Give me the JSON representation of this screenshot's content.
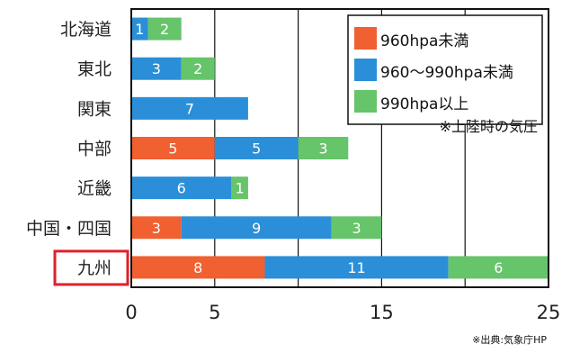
{
  "chart_data": {
    "type": "bar",
    "stacked": true,
    "orientation": "horizontal",
    "categories": [
      "北海道",
      "東北",
      "関東",
      "中部",
      "近畿",
      "中国・四国",
      "九州"
    ],
    "highlighted_category": "九州",
    "series": [
      {
        "name": "960hpa未満",
        "color": "#f06030",
        "values": [
          0,
          0,
          0,
          5,
          0,
          3,
          8
        ]
      },
      {
        "name": "960〜990hpa未満",
        "color": "#2a8fd8",
        "values": [
          1,
          3,
          7,
          5,
          6,
          9,
          11
        ]
      },
      {
        "name": "990hpa以上",
        "color": "#66c46a",
        "values": [
          2,
          2,
          0,
          3,
          1,
          3,
          6
        ]
      }
    ],
    "xlim": [
      0,
      25
    ],
    "xticks": [
      0,
      5,
      15,
      25
    ],
    "gridlines": [
      5,
      10,
      15,
      20
    ],
    "legend_position": "top-right",
    "legend_note": "※上陸時の気圧",
    "highlight_color": "#e0202a",
    "source": "※出典:気象庁HP"
  }
}
